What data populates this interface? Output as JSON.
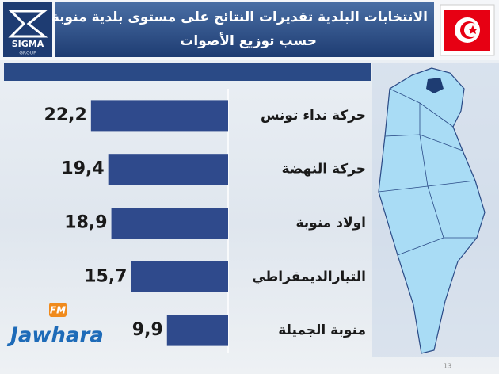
{
  "chart_data": {
    "type": "bar",
    "title": "الانتخابات البلدية تقديرات النتائج على مستوى بلدية منوبة",
    "subtitle": "حسب توزيع الأصوات",
    "categories": [
      "حركة نداء تونس",
      "حركة النهضة",
      "اولاد منوبة",
      "التيارالديمقراطي",
      "منوبة الجميلة"
    ],
    "values": [
      22.2,
      19.4,
      18.9,
      15.7,
      9.9
    ],
    "value_labels": [
      "22,2",
      "19,4",
      "18,9",
      "15,7",
      "9,9"
    ],
    "color": "#2f4a8c"
  },
  "logo": {
    "name": "SIGMA",
    "tagline": "GROUP"
  },
  "watermark": {
    "badge": "FM",
    "name": "Jawhara"
  },
  "page_number": 13
}
